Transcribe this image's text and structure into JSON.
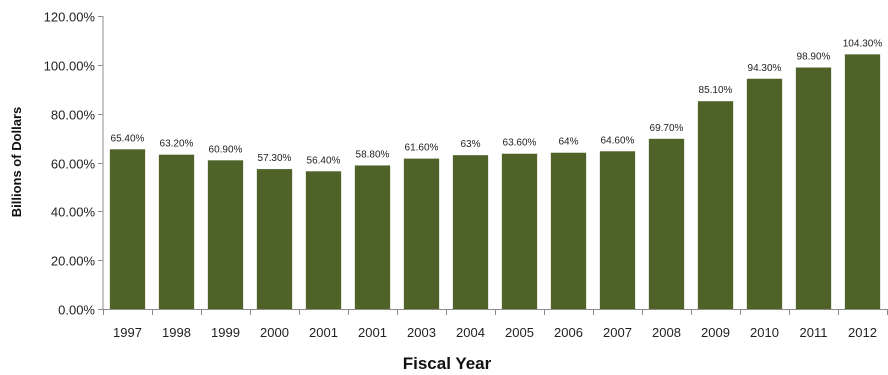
{
  "chart_data": {
    "type": "bar",
    "title": "",
    "xlabel": "Fiscal Year",
    "ylabel": "Billions of Dollars",
    "categories": [
      "1997",
      "1998",
      "1999",
      "2000",
      "2001",
      "2001",
      "2003",
      "2004",
      "2005",
      "2006",
      "2007",
      "2008",
      "2009",
      "2010",
      "2011",
      "2012"
    ],
    "values": [
      65.4,
      63.2,
      60.9,
      57.3,
      56.4,
      58.8,
      61.6,
      63,
      63.6,
      64,
      64.6,
      69.7,
      85.1,
      94.3,
      98.9,
      104.3
    ],
    "data_labels": [
      "65.40%",
      "63.20%",
      "60.90%",
      "57.30%",
      "56.40%",
      "58.80%",
      "61.60%",
      "63%",
      "63.60%",
      "64%",
      "64.60%",
      "69.70%",
      "85.10%",
      "94.30%",
      "98.90%",
      "104.30%"
    ],
    "ylim": [
      0,
      120
    ],
    "yticks": [
      0,
      20,
      40,
      60,
      80,
      100,
      120
    ],
    "ytick_labels": [
      "0.00%",
      "20.00%",
      "40.00%",
      "60.00%",
      "80.00%",
      "100.00%",
      "120.00%"
    ],
    "grid": false,
    "legend": "none",
    "bar_color": "#4f6228"
  }
}
